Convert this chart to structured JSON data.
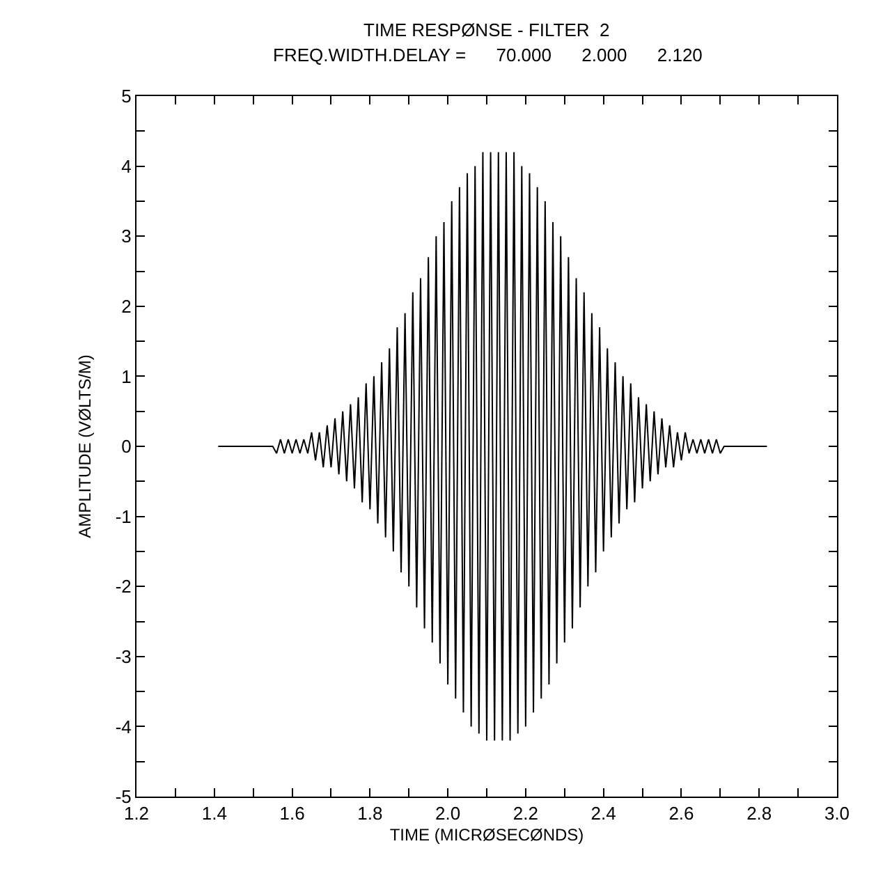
{
  "chart_data": {
    "type": "line",
    "title": "TIME RESPØNSE - FILTER  2",
    "subtitle": "FREQ.WIDTH.DELAY =      70.000      2.000      2.120",
    "xlabel": "TIME (MICRØSECØNDS)",
    "ylabel": "AMPLITUDE (VØLTS/M)",
    "xlim": [
      1.2,
      3.0
    ],
    "xticks": [
      1.2,
      {
        "value": 1.3,
        "label": null
      },
      1.4,
      {
        "value": 1.5,
        "label": null
      },
      1.6,
      {
        "value": 1.7,
        "label": null
      },
      1.8,
      {
        "value": 1.9,
        "label": null
      },
      {
        "value": 2.0,
        "label": "2.0"
      },
      {
        "value": 2.1,
        "label": null
      },
      2.2,
      {
        "value": 2.3,
        "label": null
      },
      2.4,
      {
        "value": 2.5,
        "label": null
      },
      2.6,
      {
        "value": 2.7,
        "label": null
      },
      2.8,
      {
        "value": 2.9,
        "label": null
      },
      {
        "value": 3.0,
        "label": "3.0"
      }
    ],
    "ylim": [
      -5,
      5
    ],
    "yticks": [
      -5,
      {
        "value": -4.5,
        "label": null
      },
      -4,
      {
        "value": -3.5,
        "label": null
      },
      -3,
      {
        "value": -2.5,
        "label": null
      },
      -2,
      {
        "value": -1.5,
        "label": null
      },
      -1,
      {
        "value": -0.5,
        "label": null
      },
      0,
      {
        "value": 0.5,
        "label": null
      },
      1,
      {
        "value": 1.5,
        "label": null
      },
      2,
      {
        "value": 2.5,
        "label": null
      },
      3,
      {
        "value": 3.5,
        "label": null
      },
      4,
      {
        "value": 4.5,
        "label": null
      },
      5
    ],
    "series": [
      {
        "color": "#000000",
        "x": [
          1.41,
          1.42,
          1.43,
          1.44,
          1.45,
          1.46,
          1.47,
          1.48,
          1.49,
          1.5,
          1.51,
          1.52,
          1.53,
          1.54,
          1.55,
          1.56,
          1.57,
          1.58,
          1.59,
          1.6,
          1.61,
          1.62,
          1.63,
          1.64,
          1.65,
          1.66,
          1.67,
          1.68,
          1.69,
          1.7,
          1.71,
          1.72,
          1.73,
          1.74,
          1.75,
          1.76,
          1.77,
          1.78,
          1.79,
          1.8,
          1.81,
          1.82,
          1.83,
          1.84,
          1.85,
          1.86,
          1.87,
          1.88,
          1.89,
          1.9,
          1.91,
          1.92,
          1.93,
          1.94,
          1.95,
          1.96,
          1.97,
          1.98,
          1.99,
          2.0,
          2.01,
          2.02,
          2.03,
          2.04,
          2.05,
          2.06,
          2.07,
          2.08,
          2.09,
          2.1,
          2.11,
          2.12,
          2.13,
          2.14,
          2.15,
          2.16,
          2.17,
          2.18,
          2.19,
          2.2,
          2.21,
          2.22,
          2.23,
          2.24,
          2.25,
          2.26,
          2.27,
          2.28,
          2.29,
          2.3,
          2.31,
          2.32,
          2.33,
          2.34,
          2.35,
          2.36,
          2.37,
          2.38,
          2.39,
          2.4,
          2.41,
          2.42,
          2.43,
          2.44,
          2.45,
          2.46,
          2.47,
          2.48,
          2.49,
          2.5,
          2.51,
          2.52,
          2.53,
          2.54,
          2.55,
          2.56,
          2.57,
          2.58,
          2.59,
          2.6,
          2.61,
          2.62,
          2.63,
          2.64,
          2.65,
          2.66,
          2.67,
          2.68,
          2.69,
          2.7,
          2.71,
          2.72,
          2.73,
          2.74,
          2.75,
          2.76,
          2.77,
          2.78,
          2.79,
          2.8,
          2.81,
          2.82
        ],
        "values": [
          0,
          0,
          0,
          0,
          0,
          0,
          0,
          0,
          0,
          0,
          0,
          0,
          0,
          0,
          0,
          -0.1,
          0.1,
          -0.1,
          0.1,
          -0.1,
          0.1,
          -0.1,
          0.1,
          -0.1,
          0.2,
          -0.2,
          0.2,
          -0.3,
          0.3,
          -0.3,
          0.4,
          -0.4,
          0.5,
          -0.5,
          0.6,
          -0.6,
          0.7,
          -0.8,
          0.9,
          -0.9,
          1.0,
          -1.1,
          1.2,
          -1.3,
          1.4,
          -1.5,
          1.7,
          -1.8,
          1.9,
          -2.0,
          2.2,
          -2.3,
          2.4,
          -2.6,
          2.7,
          -2.8,
          3.0,
          -3.1,
          3.2,
          -3.4,
          3.5,
          -3.6,
          3.7,
          -3.8,
          3.9,
          -4.0,
          4.0,
          -4.1,
          4.2,
          -4.2,
          4.2,
          -4.2,
          4.2,
          -4.2,
          4.2,
          -4.2,
          4.2,
          -4.1,
          4.0,
          -4.0,
          3.9,
          -3.8,
          3.7,
          -3.6,
          3.5,
          -3.4,
          3.2,
          -3.1,
          3.0,
          -2.8,
          2.7,
          -2.6,
          2.4,
          -2.3,
          2.2,
          -2.0,
          1.9,
          -1.8,
          1.7,
          -1.5,
          1.4,
          -1.3,
          1.2,
          -1.1,
          1.0,
          -0.9,
          0.9,
          -0.8,
          0.7,
          -0.6,
          0.6,
          -0.5,
          0.5,
          -0.4,
          0.4,
          -0.3,
          0.3,
          -0.3,
          0.2,
          -0.2,
          0.2,
          -0.1,
          0.1,
          -0.1,
          0.1,
          -0.1,
          0.1,
          -0.1,
          0.1,
          -0.1,
          0,
          0,
          0,
          0,
          0,
          0,
          0,
          0,
          0,
          0,
          0,
          0
        ]
      }
    ]
  }
}
